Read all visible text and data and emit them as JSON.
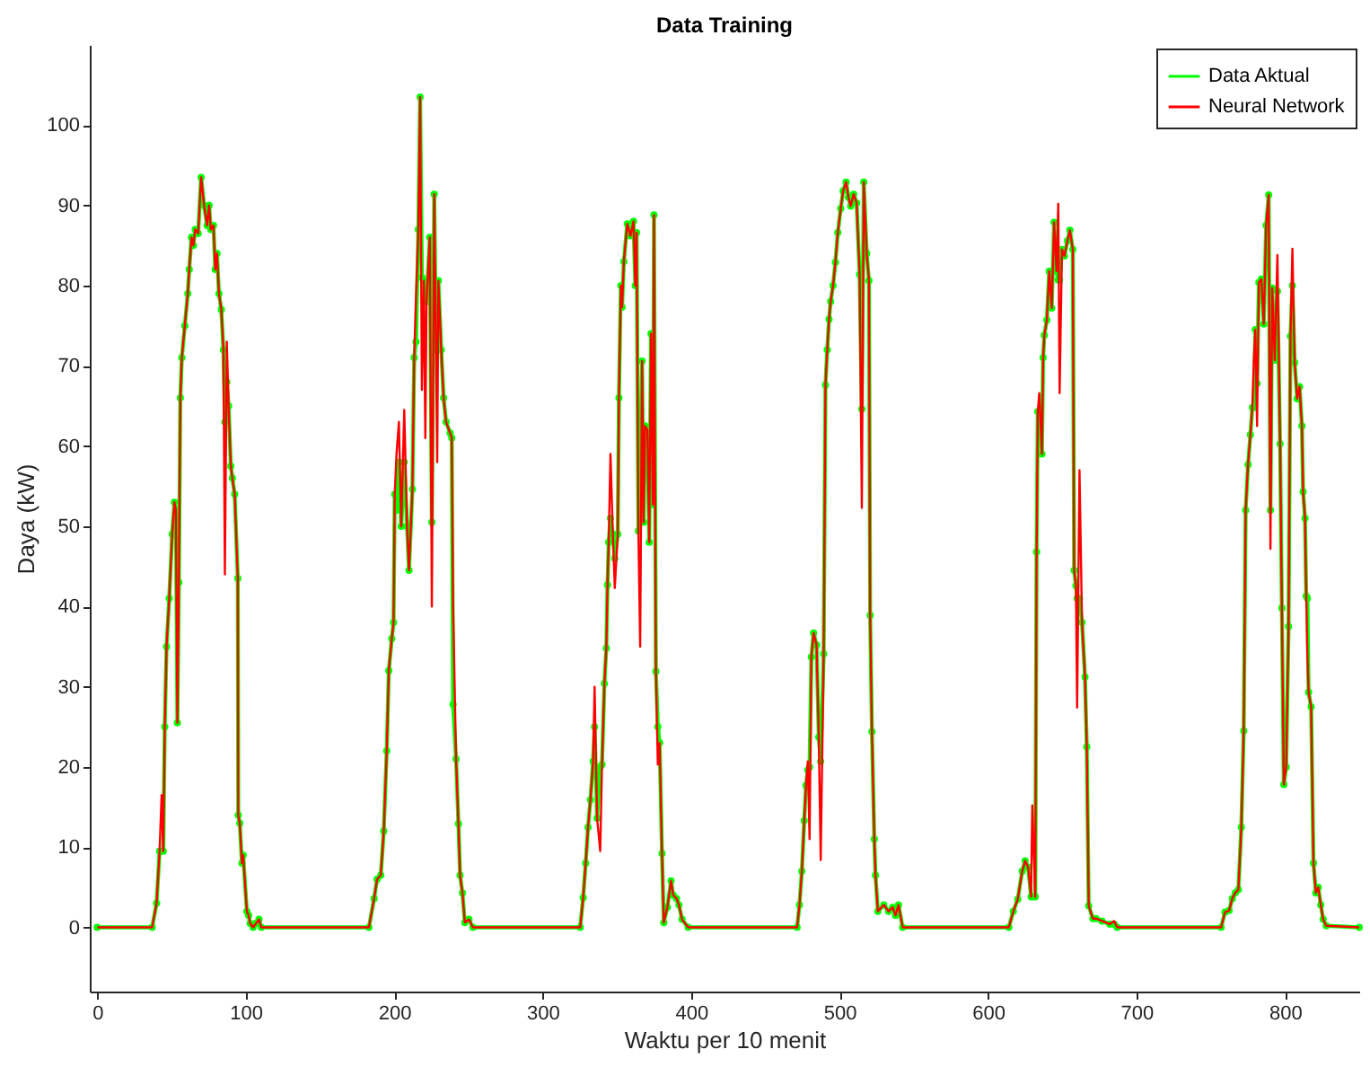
{
  "chart_data": {
    "type": "line",
    "title": "Data Training",
    "xlabel": "Waktu per 10 menit",
    "ylabel": "Daya (kW)",
    "xlim": [
      -5,
      850
    ],
    "xticks": [
      0,
      100,
      200,
      300,
      400,
      500,
      600,
      700,
      800
    ],
    "ylim": [
      -8,
      110
    ],
    "yticks": [
      0,
      10,
      20,
      30,
      40,
      50,
      60,
      70,
      80,
      90,
      100
    ],
    "grid": false,
    "legend": "top right",
    "line_style": "solid",
    "x": [
      0,
      37,
      40,
      42,
      43.4,
      44.5,
      45.5,
      46.7,
      48.5,
      50.5,
      52,
      53,
      54,
      55,
      56,
      57,
      59,
      61,
      62,
      63.5,
      64.8,
      66,
      68,
      70,
      72,
      74,
      75.4,
      76.5,
      78.3,
      79.5,
      80.7,
      82,
      83.6,
      85,
      86,
      87.3,
      88.5,
      90,
      91,
      92.6,
      94.7,
      95,
      96,
      97.5,
      98.3,
      100.8,
      102,
      103,
      105,
      107,
      109,
      110.5,
      183,
      186.5,
      188.5,
      191,
      193,
      195,
      196.4,
      198.4,
      199.6,
      200.4,
      201.6,
      203.2,
      204.8,
      206.8,
      208.7,
      210,
      212.3,
      213.5,
      214.7,
      216.3,
      217.5,
      218.7,
      220,
      221,
      221.8,
      224,
      225.4,
      227,
      228.2,
      229,
      229.8,
      231.7,
      233.3,
      235,
      237.7,
      238.8,
      239.7,
      241.7,
      243.3,
      244.4,
      246,
      247.6,
      250.4,
      253,
      325.3,
      327.3,
      329,
      330.6,
      332.2,
      334,
      335,
      336.7,
      338.8,
      340,
      341.6,
      342.9,
      343.7,
      344.5,
      345.7,
      347.3,
      348.6,
      350.6,
      351.4,
      352.7,
      353.5,
      354.7,
      357,
      359.2,
      361.2,
      362.4,
      363.3,
      364.5,
      365.7,
      367,
      368,
      369,
      370.6,
      371.8,
      373,
      374.3,
      375,
      376.3,
      377.6,
      378.8,
      380.4,
      381.6,
      384,
      386.5,
      388,
      390.2,
      391.8,
      393.9,
      398,
      471.4,
      473,
      474.6,
      476.2,
      477.4,
      478.6,
      479.8,
      481,
      482.5,
      484.5,
      486,
      487.3,
      489.3,
      490.5,
      491.7,
      492.9,
      494,
      495.6,
      497.2,
      498.8,
      500.8,
      502.4,
      504.4,
      506,
      507.5,
      509.5,
      511.5,
      513.5,
      515,
      516.3,
      518.3,
      519.8,
      520.6,
      521.8,
      523.4,
      524.2,
      525.8,
      529.8,
      533,
      535.7,
      537.7,
      539.7,
      542.5,
      614,
      617,
      620,
      623,
      625,
      627,
      629,
      629.8,
      631.8,
      632.7,
      633.5,
      634.5,
      636.3,
      637.1,
      637.9,
      639.6,
      641.2,
      642.9,
      644.5,
      646.1,
      647.3,
      648.2,
      649.8,
      651.4,
      653.5,
      655.1,
      657.1,
      658,
      659.2,
      660,
      661.6,
      663.3,
      665.3,
      666.5,
      667.8,
      670.6,
      672.7,
      676.7,
      682,
      684.9,
      687,
      757,
      759.6,
      762.4,
      764.5,
      766.5,
      768.6,
      770.6,
      772.2,
      773.5,
      775.1,
      776.7,
      778,
      779,
      780,
      781.2,
      782.4,
      784.1,
      785.7,
      787.3,
      789,
      790.2,
      791.4,
      793.1,
      794.9,
      796.7,
      797.9,
      799.2,
      800.8,
      802.4,
      803.7,
      805,
      806.5,
      808.2,
      809.8,
      811.4,
      812.2,
      813.5,
      814.3,
      815.1,
      815.9,
      817.6,
      819.2,
      820.8,
      822.4,
      824.1,
      825.7,
      827.8,
      850
    ],
    "series": [
      {
        "name": "Data Aktual",
        "color": "#00ff00",
        "marker": "circle",
        "values": [
          0,
          0,
          3,
          9.5,
          9.5,
          9.5,
          25,
          35,
          41,
          49,
          53,
          52,
          25.5,
          43,
          66,
          71,
          75,
          79,
          82,
          86,
          85,
          87,
          86.5,
          93.5,
          90,
          87.5,
          90,
          87,
          87.5,
          82,
          84,
          79,
          77,
          72,
          63,
          68,
          65,
          57.5,
          56,
          54,
          43.5,
          14,
          13,
          8,
          9,
          2,
          1.5,
          0.5,
          0,
          0.5,
          1,
          0,
          0,
          3.6,
          6,
          6.5,
          12,
          22,
          32,
          36,
          38,
          54,
          52,
          58,
          50,
          58,
          50,
          44.5,
          54.6,
          71,
          73,
          87,
          103.5,
          81,
          80.6,
          78,
          78,
          86,
          50.5,
          91.4,
          72,
          72,
          80.6,
          72,
          66,
          63,
          61.6,
          61,
          27.8,
          21,
          12.9,
          6.5,
          4.3,
          0.6,
          1,
          0,
          0,
          3.7,
          8,
          12.5,
          15.9,
          20.7,
          25,
          13.6,
          20,
          20.3,
          30.4,
          34.8,
          42.7,
          48,
          51,
          49,
          46,
          49,
          66,
          80,
          77.3,
          83,
          87.7,
          86.2,
          88,
          80,
          86.6,
          49.4,
          51,
          70.6,
          50.5,
          62.5,
          62,
          48,
          74,
          52.7,
          88.8,
          31.9,
          25,
          23,
          9.2,
          0.6,
          2.5,
          5.8,
          4,
          3.6,
          2.8,
          1,
          0,
          0,
          2.8,
          7,
          13.3,
          17.7,
          19.6,
          20,
          33.7,
          36.7,
          35.2,
          23.7,
          20.7,
          34.1,
          67.6,
          72,
          75.8,
          78,
          80,
          82.9,
          86.6,
          89.6,
          91.8,
          92.9,
          91,
          89.9,
          91.4,
          90.3,
          81.4,
          64.6,
          92.9,
          84,
          80.6,
          38.9,
          24.4,
          11,
          6.5,
          2,
          2.8,
          2,
          2.5,
          1.5,
          2.8,
          0,
          0,
          2,
          3.5,
          7,
          8.3,
          7.5,
          3.8,
          3.8,
          3.8,
          46.8,
          64.3,
          64.3,
          59,
          71,
          73.8,
          75.7,
          81.8,
          77.2,
          87.9,
          81.8,
          80.7,
          80.7,
          84.5,
          83.7,
          85.6,
          86.9,
          84.5,
          44.5,
          42.6,
          41,
          41,
          38,
          31.2,
          22.5,
          2.7,
          1.1,
          1.1,
          0.8,
          0.4,
          0.4,
          0,
          0,
          1.9,
          2.1,
          3.6,
          4.3,
          4.7,
          12.5,
          24.5,
          52,
          57.7,
          61.4,
          64.8,
          64.8,
          74.5,
          67.8,
          80.4,
          80.8,
          75.2,
          87.5,
          91.3,
          52,
          79.7,
          70.7,
          79.3,
          60.3,
          39.8,
          17.8,
          20,
          37.5,
          73.7,
          80,
          70.4,
          65.9,
          67.4,
          62.5,
          54.3,
          51,
          41.3,
          41,
          29.3,
          27.5,
          8,
          4.3,
          5,
          2.8,
          1,
          0.2,
          0
        ]
      },
      {
        "name": "Neural Network",
        "color": "#ff0000",
        "marker": "none",
        "values": [
          0,
          0,
          3,
          9.5,
          16.5,
          9.5,
          25,
          35,
          41,
          49,
          53,
          52,
          25.5,
          43,
          66,
          71,
          75,
          79,
          82,
          86,
          85,
          87,
          86.5,
          93.5,
          90,
          87.5,
          90,
          87,
          87.5,
          82,
          84,
          79,
          77,
          72,
          44,
          73,
          65,
          57.5,
          56,
          54,
          43.5,
          14,
          13,
          8,
          9,
          2,
          1.5,
          0.5,
          0,
          0.5,
          1,
          0,
          0,
          3.6,
          6,
          6.5,
          12,
          22,
          32,
          36,
          38,
          54,
          59,
          63,
          50,
          64.5,
          50,
          44.5,
          54.6,
          71,
          78.4,
          87,
          103.5,
          67,
          80.6,
          61,
          78,
          86,
          40,
          91.4,
          72,
          58,
          80.6,
          72,
          66,
          63,
          61.6,
          61,
          40.4,
          21,
          12.9,
          6.5,
          4.3,
          0.6,
          1,
          0,
          0,
          3.7,
          8,
          12.5,
          15.9,
          20.7,
          30,
          13.6,
          9.5,
          20.3,
          30.4,
          34.8,
          42.7,
          48,
          59,
          49,
          42.3,
          49,
          66,
          80,
          77.3,
          83,
          87.7,
          86.2,
          88,
          80,
          86.6,
          49.4,
          35,
          70.6,
          50.5,
          62.5,
          62,
          48,
          74,
          52.7,
          88.8,
          31.9,
          20.3,
          23,
          9.2,
          0.6,
          2.5,
          5.8,
          4,
          3.6,
          2.8,
          1,
          0,
          0,
          2.8,
          7,
          13.3,
          17.7,
          20.7,
          11,
          33.7,
          36.7,
          35.2,
          23.7,
          8.4,
          34.1,
          67.6,
          72,
          75.8,
          78,
          80,
          82.9,
          86.6,
          89.6,
          91.8,
          92.9,
          91,
          89.9,
          91.4,
          90.3,
          81.4,
          52.3,
          92.9,
          84,
          80.6,
          38.9,
          24.4,
          11,
          6.5,
          2,
          2.8,
          2,
          2.5,
          1.5,
          2.8,
          0,
          0,
          2,
          3.5,
          7,
          8.3,
          7.5,
          3.8,
          15.2,
          3.8,
          46.8,
          64.3,
          66.6,
          59,
          71,
          73.8,
          75.7,
          81.8,
          77.2,
          87.9,
          81.8,
          90.2,
          66.6,
          84.5,
          83.7,
          85.6,
          86.9,
          84.5,
          44.5,
          42.6,
          27.4,
          57,
          38,
          31.2,
          22.5,
          2.7,
          1.1,
          1.1,
          0.8,
          0.4,
          0.8,
          0,
          0,
          1.9,
          2.1,
          3.6,
          4.3,
          4.7,
          12.5,
          24.5,
          52,
          57.7,
          61.4,
          64.8,
          70.7,
          74.5,
          62.5,
          80.4,
          80.8,
          75.2,
          87.5,
          91.3,
          47.2,
          79.7,
          70.7,
          83.8,
          60.3,
          39.8,
          17.8,
          20,
          37.5,
          73.7,
          84.6,
          70.4,
          65.9,
          67.4,
          62.5,
          54.3,
          51,
          41.3,
          33.8,
          29.3,
          27.5,
          8,
          4.3,
          5,
          2.8,
          1,
          0.2,
          0
        ]
      }
    ]
  }
}
